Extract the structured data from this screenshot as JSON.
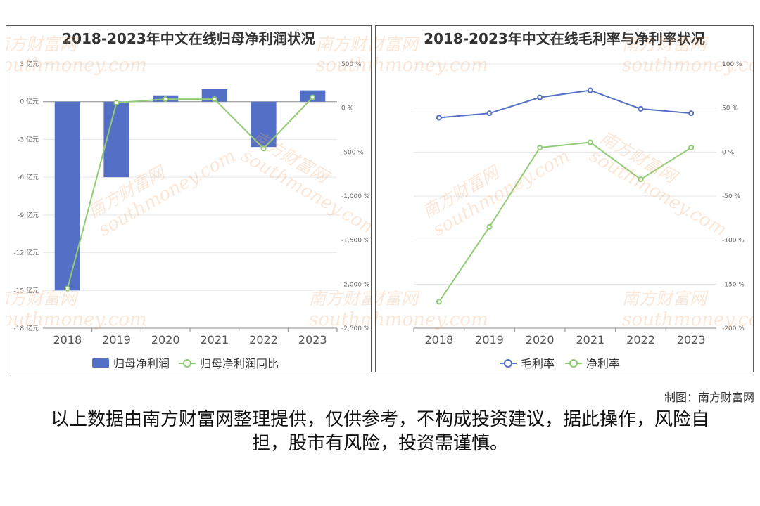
{
  "colors": {
    "bar": "#5470c6",
    "blue": "#5470c6",
    "green": "#91cc75",
    "axis": "#888888",
    "grid": "#e6e6e6"
  },
  "watermark": {
    "cn": "南方财富网",
    "en": "southmoney.com"
  },
  "credit": "制图：南方财富网",
  "disclaimer": "以上数据由南方财富网整理提供，仅供参考，不构成投资建议，据此操作，风险自担，股市有风险，投资需谨慎。",
  "chart_data": [
    {
      "type": "bar",
      "title": "2018-2023年中文在线归母净利润状况",
      "categories": [
        "2018",
        "2019",
        "2020",
        "2021",
        "2022",
        "2023"
      ],
      "series": [
        {
          "name": "归母净利润",
          "kind": "bar",
          "axis": "left",
          "values": [
            -15.0,
            -6.0,
            0.5,
            1.0,
            -3.6,
            0.9
          ]
        },
        {
          "name": "归母净利润同比",
          "kind": "line",
          "axis": "right",
          "values": [
            -2050,
            60,
            100,
            100,
            -460,
            120
          ]
        }
      ],
      "y_left": {
        "min": -18,
        "max": 3,
        "ticks": [
          3,
          0,
          -3,
          -6,
          -9,
          -12,
          -15,
          -18
        ],
        "tick_labels": [
          "3 亿元",
          "0 亿元",
          "-3 亿元",
          "-6 亿元",
          "-9 亿元",
          "-12 亿元",
          "-15 亿元",
          "-18 亿元"
        ]
      },
      "y_right": {
        "min": -2500,
        "max": 500,
        "ticks": [
          500,
          0,
          -500,
          -1000,
          -1500,
          -2000,
          -2500
        ],
        "tick_labels": [
          "500 %",
          "0 %",
          "-500 %",
          "-1,000 %",
          "-1,500 %",
          "-2,000 %",
          "-2,500 %"
        ]
      },
      "legend": "bottom"
    },
    {
      "type": "line",
      "title": "2018-2023年中文在线毛利率与净利率状况",
      "categories": [
        "2018",
        "2019",
        "2020",
        "2021",
        "2022",
        "2023"
      ],
      "series": [
        {
          "name": "毛利率",
          "values": [
            39,
            44,
            62,
            70,
            49,
            44
          ]
        },
        {
          "name": "净利率",
          "values": [
            -170,
            -85,
            5,
            11,
            -31,
            5
          ]
        }
      ],
      "y_right": {
        "min": -200,
        "max": 100,
        "ticks": [
          100,
          50,
          0,
          -50,
          -100,
          -150,
          -200
        ],
        "tick_labels": [
          "100 %",
          "50 %",
          "0 %",
          "-50 %",
          "-100 %",
          "-150 %",
          "-200 %"
        ]
      },
      "legend": "bottom"
    }
  ]
}
